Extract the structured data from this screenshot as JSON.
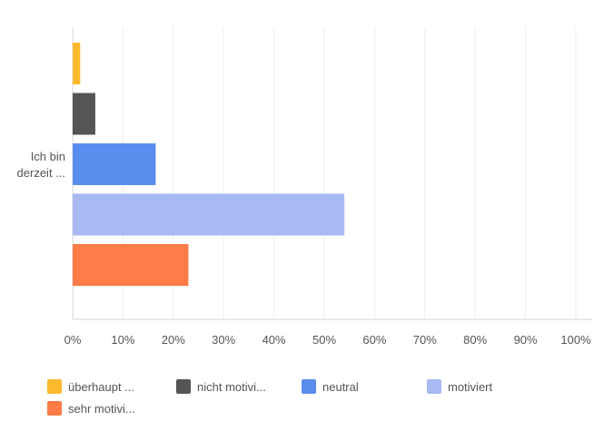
{
  "chart_data": {
    "type": "bar",
    "orientation": "horizontal",
    "categories": [
      "Ich bin derzeit ..."
    ],
    "category_label_lines": [
      "Ich bin",
      "derzeit ..."
    ],
    "series": [
      {
        "name": "überhaupt ...",
        "values": [
          1.5
        ],
        "color": "#FDB92E"
      },
      {
        "name": "nicht motivi...",
        "values": [
          4.5
        ],
        "color": "#555555"
      },
      {
        "name": "neutral",
        "values": [
          16.5
        ],
        "color": "#5B8DEF"
      },
      {
        "name": "motiviert",
        "values": [
          54
        ],
        "color": "#A8B9F4"
      },
      {
        "name": "sehr motivi...",
        "values": [
          23
        ],
        "color": "#FF7B47"
      }
    ],
    "x_ticks": [
      "0%",
      "10%",
      "20%",
      "30%",
      "40%",
      "50%",
      "60%",
      "70%",
      "80%",
      "90%",
      "100%"
    ],
    "xlim": [
      0,
      100
    ],
    "grid": true,
    "legend_position": "bottom"
  }
}
